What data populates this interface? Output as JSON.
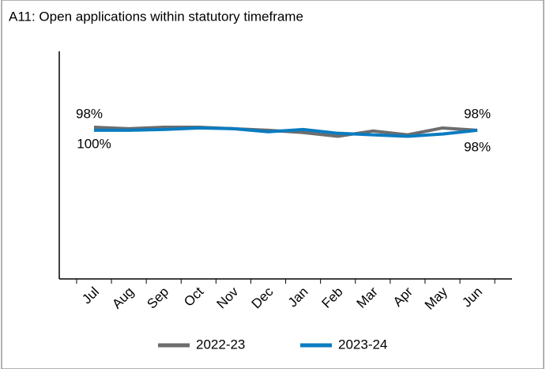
{
  "chart_data": {
    "type": "line",
    "title": "A11: Open applications within statutory timeframe",
    "categories": [
      "Jul",
      "Aug",
      "Sep",
      "Oct",
      "Nov",
      "Dec",
      "Jan",
      "Feb",
      "Mar",
      "Apr",
      "May",
      "Jun"
    ],
    "series": [
      {
        "name": "2022-23",
        "color": "#6d6d6d",
        "values": [
          100,
          99,
          100,
          100,
          99,
          98,
          96.5,
          94,
          97.5,
          95,
          99.5,
          98
        ],
        "value_labels": [
          "100%",
          null,
          null,
          null,
          null,
          null,
          null,
          null,
          null,
          null,
          null,
          "98%"
        ],
        "label_color": "#000000"
      },
      {
        "name": "2023-24",
        "color": "#0a7cc1",
        "values": [
          98,
          98,
          98.5,
          99.5,
          99,
          97,
          98.5,
          96,
          95,
          94,
          95.5,
          98
        ],
        "value_labels": [
          "98%",
          null,
          null,
          null,
          null,
          null,
          null,
          null,
          null,
          null,
          null,
          "98%"
        ],
        "label_color": "#1a8bd1"
      }
    ],
    "ylim": [
      0,
      150
    ]
  }
}
